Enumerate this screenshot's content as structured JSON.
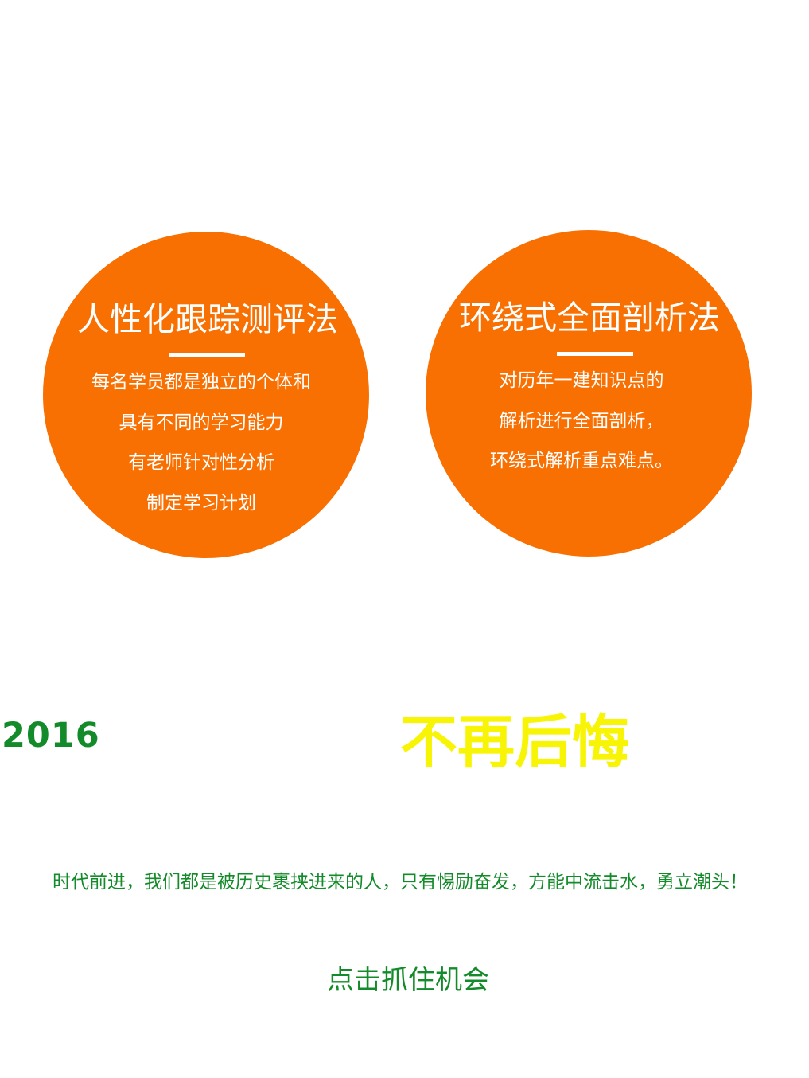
{
  "colors": {
    "circle_orange": "#f97002",
    "green": "#148b2a",
    "yellow": "#f7f505",
    "white": "#ffffff"
  },
  "circles": [
    {
      "title": "人性化跟踪测评法",
      "lines": [
        "每名学员都是独立的个体和",
        "具有不同的学习能力",
        "有老师针对性分析",
        "制定学习计划"
      ]
    },
    {
      "title": "环绕式全面剖析法",
      "lines": [
        "对历年一建知识点的",
        "解析进行全面剖析，",
        "环绕式解析重点难点。"
      ]
    }
  ],
  "year": "2016",
  "slogan": "不再后悔",
  "tagline": "时代前进，我们都是被历史裹挟进来的人，只有惕励奋发，方能中流击水，勇立潮头！",
  "cta": "点击抓住机会"
}
